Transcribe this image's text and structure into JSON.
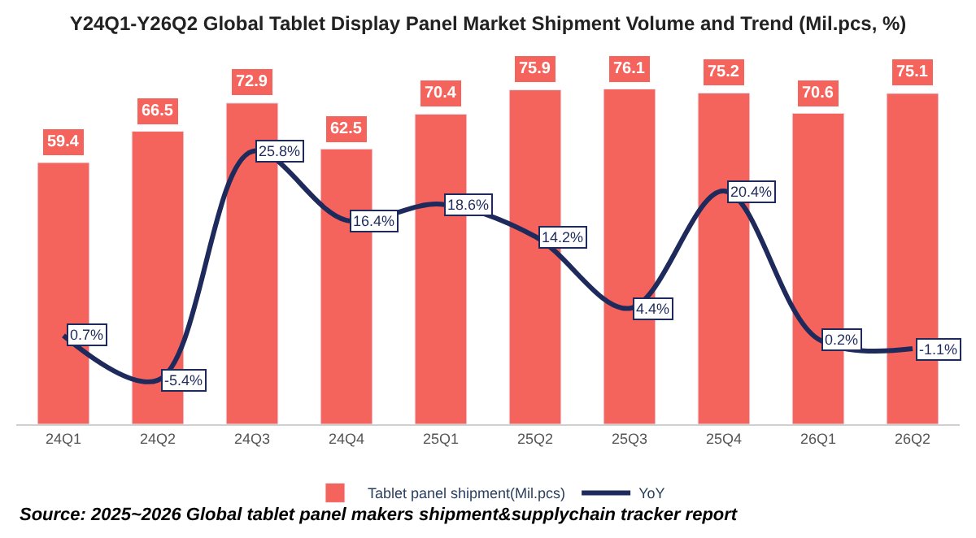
{
  "chart_data": {
    "type": "bar",
    "title": "Y24Q1-Y26Q2 Global Tablet Display Panel Market Shipment Volume and Trend (Mil.pcs, %)",
    "categories": [
      "24Q1",
      "24Q2",
      "24Q3",
      "24Q4",
      "25Q1",
      "25Q2",
      "25Q3",
      "25Q4",
      "26Q1",
      "26Q2"
    ],
    "series": [
      {
        "name": "Tablet panel shipment(Mil.pcs)",
        "color": "#f4645c",
        "values": [
          59.4,
          66.5,
          72.9,
          62.5,
          70.4,
          75.9,
          76.1,
          75.2,
          70.6,
          75.1
        ],
        "value_labels": [
          "59.4",
          "66.5",
          "72.9",
          "62.5",
          "70.4",
          "75.9",
          "76.1",
          "75.2",
          "70.6",
          "75.1"
        ]
      },
      {
        "name": "YoY",
        "type": "line",
        "axis": "y2",
        "color": "#1f2a5c",
        "marker": "none",
        "values": [
          0.7,
          -5.4,
          25.8,
          16.4,
          18.6,
          14.2,
          4.4,
          20.4,
          0.2,
          -1.1
        ],
        "value_labels": [
          "0.7%",
          "-5.4%",
          "25.8%",
          "16.4%",
          "18.6%",
          "14.2%",
          "4.4%",
          "20.4%",
          "0.2%",
          "-1.1%"
        ]
      }
    ],
    "legend": "bottom",
    "tick_labels": "x",
    "annotations": [
      "Source: 2025~2026 Global tablet panel makers shipment&supplychain tracker report"
    ]
  }
}
